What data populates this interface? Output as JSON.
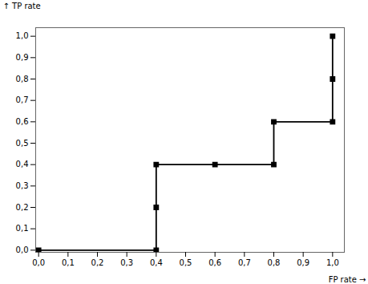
{
  "chart_data": {
    "type": "line",
    "x": [
      0.0,
      0.4,
      0.4,
      0.4,
      0.6,
      0.8,
      0.8,
      1.0,
      1.0,
      1.0
    ],
    "values": [
      0.0,
      0.0,
      0.2,
      0.4,
      0.4,
      0.4,
      0.6,
      0.6,
      0.8,
      1.0
    ],
    "xlabel": "FP rate",
    "ylabel": "TP rate",
    "xlim": [
      -0.01,
      1.04
    ],
    "ylim": [
      -0.01,
      1.04
    ],
    "xticks": [
      {
        "value": 0.0,
        "label": "0,0"
      },
      {
        "value": 0.1,
        "label": "0,1"
      },
      {
        "value": 0.2,
        "label": "0,2"
      },
      {
        "value": 0.3,
        "label": "0,3"
      },
      {
        "value": 0.4,
        "label": "0,4"
      },
      {
        "value": 0.5,
        "label": "0,5"
      },
      {
        "value": 0.6,
        "label": "0,6"
      },
      {
        "value": 0.7,
        "label": "0,7"
      },
      {
        "value": 0.8,
        "label": "0,8"
      },
      {
        "value": 0.9,
        "label": "0,9"
      },
      {
        "value": 1.0,
        "label": "1,0"
      }
    ],
    "yticks": [
      {
        "value": 0.0,
        "label": "0,0"
      },
      {
        "value": 0.1,
        "label": "0,1"
      },
      {
        "value": 0.2,
        "label": "0,2"
      },
      {
        "value": 0.3,
        "label": "0,3"
      },
      {
        "value": 0.4,
        "label": "0,4"
      },
      {
        "value": 0.5,
        "label": "0,5"
      },
      {
        "value": 0.6,
        "label": "0,6"
      },
      {
        "value": 0.7,
        "label": "0,7"
      },
      {
        "value": 0.8,
        "label": "0,8"
      },
      {
        "value": 0.9,
        "label": "0,9"
      },
      {
        "value": 1.0,
        "label": "1,0"
      }
    ],
    "color": "#000000",
    "marker": "square",
    "grid": false
  }
}
